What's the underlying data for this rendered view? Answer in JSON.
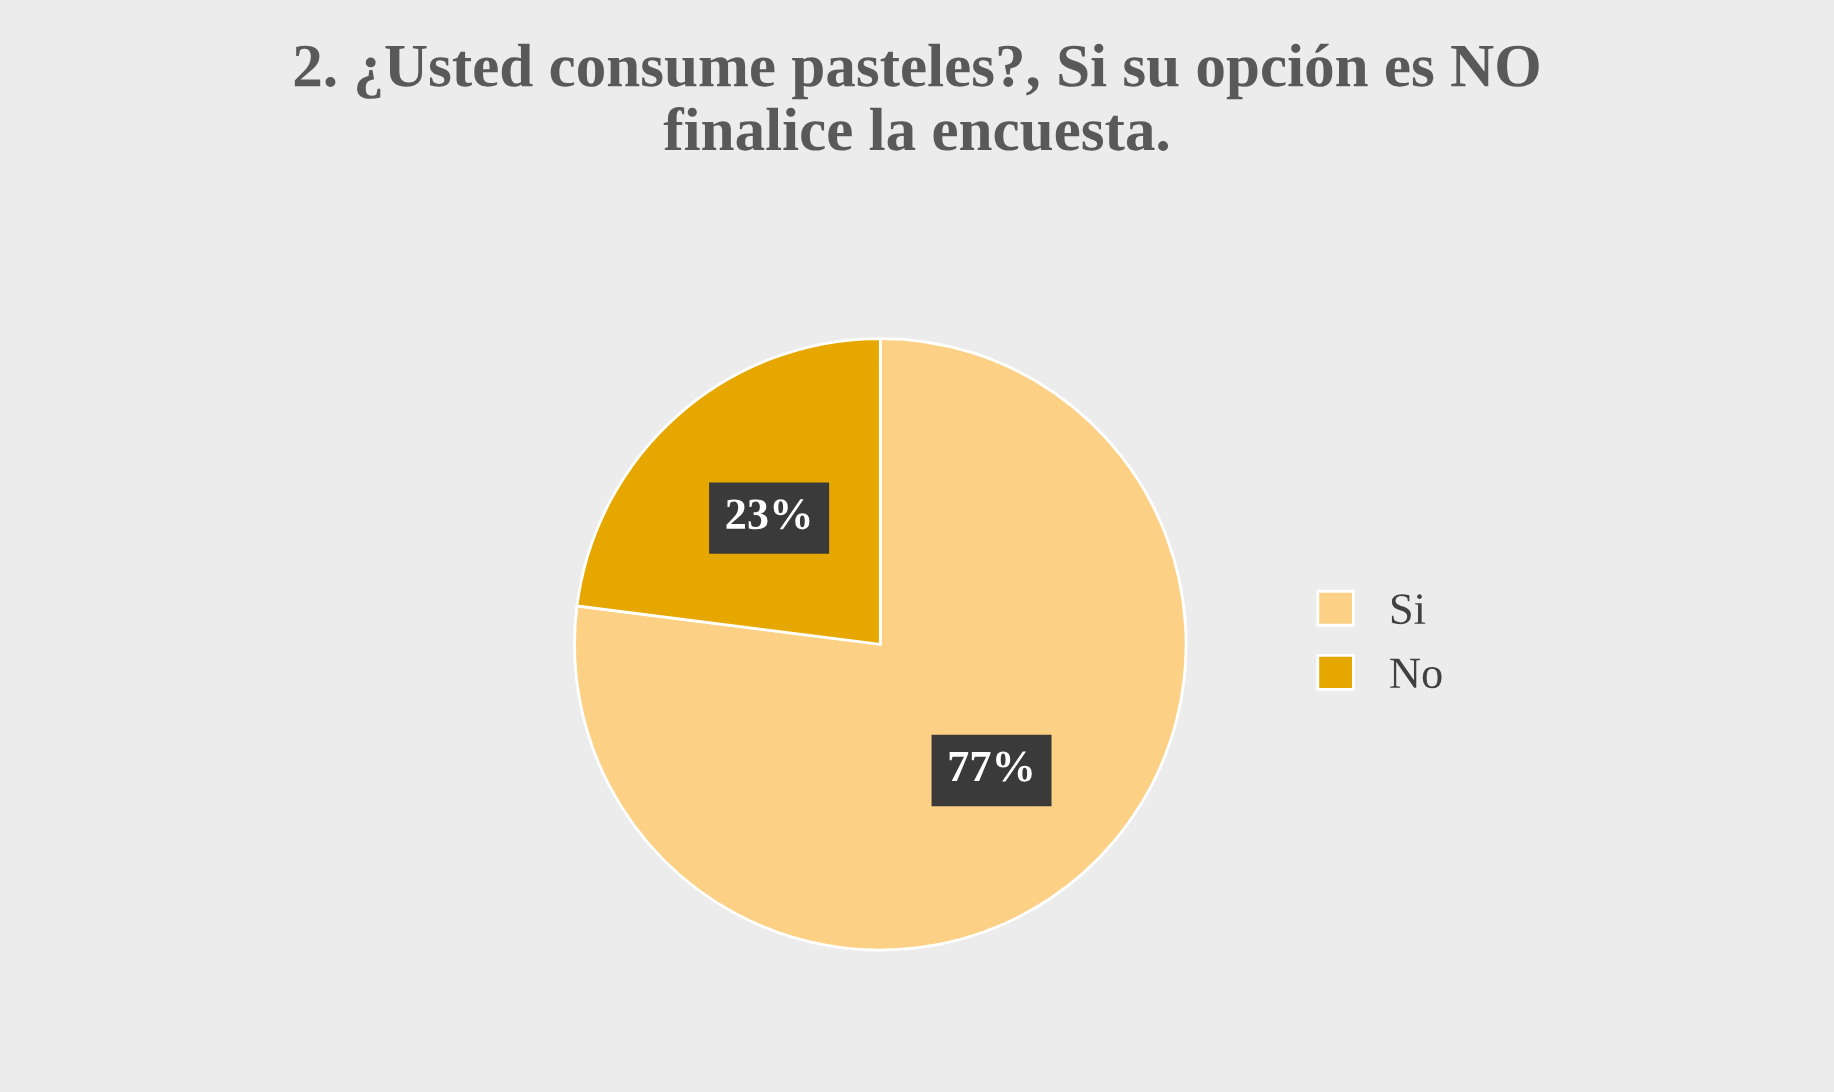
{
  "chart_data": {
    "type": "pie",
    "title": "2. ¿Usted consume pasteles?, Si su opción es NO\nfinalice la encuesta.",
    "categories": [
      "Si",
      "No"
    ],
    "values": [
      77,
      23
    ],
    "value_labels": [
      "77%",
      "23%"
    ],
    "colors": [
      "#fdd185",
      "#e6a800"
    ],
    "legend": "right"
  }
}
